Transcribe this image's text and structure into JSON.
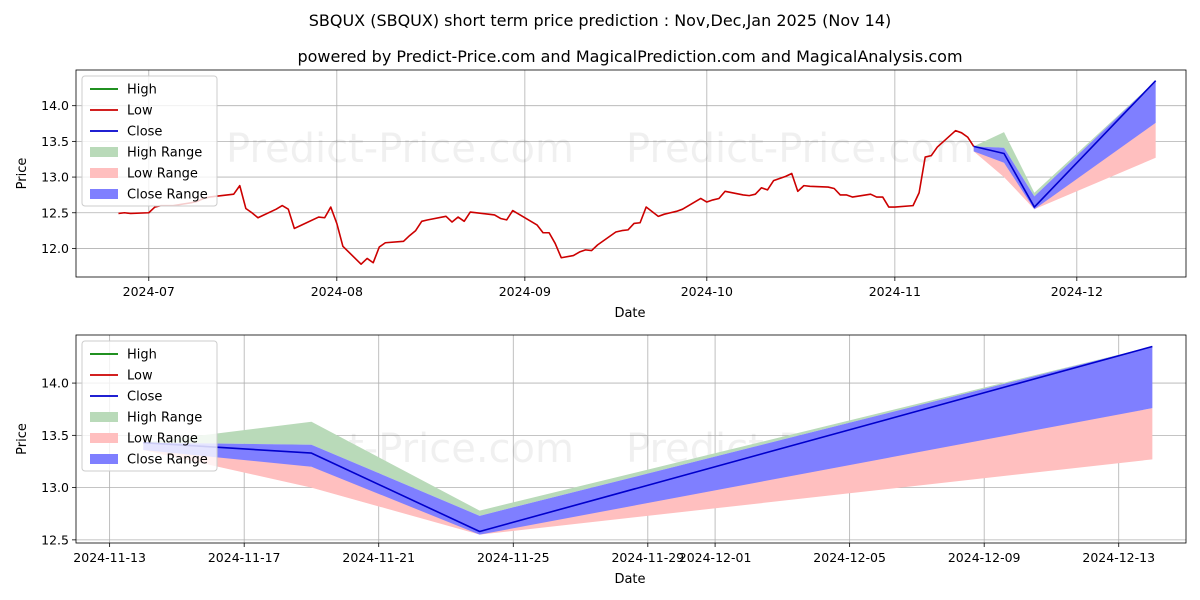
{
  "title": "SBQUX (SBQUX) short term price prediction : Nov,Dec,Jan 2025 (Nov 14)",
  "subtitle": "powered by Predict-Price.com and MagicalPrediction.com and MagicalAnalysis.com",
  "watermark": "Predict-Price.com",
  "colors": {
    "high": "#008000",
    "low": "#cc0000",
    "close": "#0000cc",
    "high_range": "#b9dab9",
    "low_range": "#ffbfbf",
    "close_range": "#7f7fff",
    "grid": "#b0b0b0"
  },
  "chart_data": [
    {
      "type": "line",
      "xlabel": "Date",
      "ylabel": "Price",
      "xlim": [
        "2024-06-19",
        "2024-12-19"
      ],
      "ylim": [
        11.6,
        14.5
      ],
      "xticks": [
        {
          "date": "2024-07-01",
          "label": "2024-07"
        },
        {
          "date": "2024-08-01",
          "label": "2024-08"
        },
        {
          "date": "2024-09-01",
          "label": "2024-09"
        },
        {
          "date": "2024-10-01",
          "label": "2024-10"
        },
        {
          "date": "2024-11-01",
          "label": "2024-11"
        },
        {
          "date": "2024-12-01",
          "label": "2024-12"
        }
      ],
      "yticks": [
        12.0,
        12.5,
        13.0,
        13.5,
        14.0
      ],
      "legend": [
        "High",
        "Low",
        "Close",
        "High Range",
        "Low Range",
        "Close Range"
      ],
      "legend_location": "upper-left",
      "history": [
        [
          "2024-06-26",
          12.49
        ],
        [
          "2024-06-27",
          12.5
        ],
        [
          "2024-06-28",
          12.49
        ],
        [
          "2024-07-01",
          12.5
        ],
        [
          "2024-07-02",
          12.58
        ],
        [
          "2024-07-03",
          12.6
        ],
        [
          "2024-07-05",
          12.6
        ],
        [
          "2024-07-08",
          12.64
        ],
        [
          "2024-07-09",
          12.66
        ],
        [
          "2024-07-10",
          12.7
        ],
        [
          "2024-07-11",
          12.72
        ],
        [
          "2024-07-12",
          12.73
        ],
        [
          "2024-07-15",
          12.76
        ],
        [
          "2024-07-16",
          12.88
        ],
        [
          "2024-07-17",
          12.56
        ],
        [
          "2024-07-18",
          12.5
        ],
        [
          "2024-07-19",
          12.43
        ],
        [
          "2024-07-22",
          12.55
        ],
        [
          "2024-07-23",
          12.6
        ],
        [
          "2024-07-24",
          12.55
        ],
        [
          "2024-07-25",
          12.28
        ],
        [
          "2024-07-26",
          12.32
        ],
        [
          "2024-07-29",
          12.44
        ],
        [
          "2024-07-30",
          12.43
        ],
        [
          "2024-07-31",
          12.58
        ],
        [
          "2024-08-01",
          12.35
        ],
        [
          "2024-08-02",
          12.03
        ],
        [
          "2024-08-05",
          11.78
        ],
        [
          "2024-08-06",
          11.86
        ],
        [
          "2024-08-07",
          11.8
        ],
        [
          "2024-08-08",
          12.02
        ],
        [
          "2024-08-09",
          12.08
        ],
        [
          "2024-08-12",
          12.1
        ],
        [
          "2024-08-13",
          12.18
        ],
        [
          "2024-08-14",
          12.25
        ],
        [
          "2024-08-15",
          12.38
        ],
        [
          "2024-08-16",
          12.4
        ],
        [
          "2024-08-19",
          12.45
        ],
        [
          "2024-08-20",
          12.37
        ],
        [
          "2024-08-21",
          12.44
        ],
        [
          "2024-08-22",
          12.38
        ],
        [
          "2024-08-23",
          12.51
        ],
        [
          "2024-08-26",
          12.48
        ],
        [
          "2024-08-27",
          12.47
        ],
        [
          "2024-08-28",
          12.42
        ],
        [
          "2024-08-29",
          12.4
        ],
        [
          "2024-08-30",
          12.53
        ],
        [
          "2024-09-03",
          12.33
        ],
        [
          "2024-09-04",
          12.22
        ],
        [
          "2024-09-05",
          12.22
        ],
        [
          "2024-09-06",
          12.07
        ],
        [
          "2024-09-07",
          11.87
        ],
        [
          "2024-09-09",
          11.9
        ],
        [
          "2024-09-10",
          11.95
        ],
        [
          "2024-09-11",
          11.98
        ],
        [
          "2024-09-12",
          11.97
        ],
        [
          "2024-09-13",
          12.05
        ],
        [
          "2024-09-16",
          12.23
        ],
        [
          "2024-09-17",
          12.25
        ],
        [
          "2024-09-18",
          12.26
        ],
        [
          "2024-09-19",
          12.35
        ],
        [
          "2024-09-20",
          12.36
        ],
        [
          "2024-09-21",
          12.58
        ],
        [
          "2024-09-23",
          12.45
        ],
        [
          "2024-09-24",
          12.48
        ],
        [
          "2024-09-25",
          12.5
        ],
        [
          "2024-09-26",
          12.52
        ],
        [
          "2024-09-27",
          12.55
        ],
        [
          "2024-09-30",
          12.7
        ],
        [
          "2024-10-01",
          12.65
        ],
        [
          "2024-10-02",
          12.68
        ],
        [
          "2024-10-03",
          12.7
        ],
        [
          "2024-10-04",
          12.8
        ],
        [
          "2024-10-07",
          12.75
        ],
        [
          "2024-10-08",
          12.74
        ],
        [
          "2024-10-09",
          12.76
        ],
        [
          "2024-10-10",
          12.85
        ],
        [
          "2024-10-11",
          12.82
        ],
        [
          "2024-10-12",
          12.95
        ],
        [
          "2024-10-14",
          13.01
        ],
        [
          "2024-10-15",
          13.05
        ],
        [
          "2024-10-16",
          12.8
        ],
        [
          "2024-10-17",
          12.88
        ],
        [
          "2024-10-18",
          12.87
        ],
        [
          "2024-10-21",
          12.86
        ],
        [
          "2024-10-22",
          12.84
        ],
        [
          "2024-10-23",
          12.75
        ],
        [
          "2024-10-24",
          12.75
        ],
        [
          "2024-10-25",
          12.72
        ],
        [
          "2024-10-28",
          12.76
        ],
        [
          "2024-10-29",
          12.72
        ],
        [
          "2024-10-30",
          12.72
        ],
        [
          "2024-10-31",
          12.58
        ],
        [
          "2024-11-01",
          12.58
        ],
        [
          "2024-11-04",
          12.6
        ],
        [
          "2024-11-05",
          12.78
        ],
        [
          "2024-11-06",
          13.28
        ],
        [
          "2024-11-07",
          13.3
        ],
        [
          "2024-11-08",
          13.42
        ],
        [
          "2024-11-11",
          13.65
        ],
        [
          "2024-11-12",
          13.62
        ],
        [
          "2024-11-13",
          13.56
        ],
        [
          "2024-11-14",
          13.43
        ]
      ]
    },
    {
      "type": "line",
      "xlabel": "Date",
      "ylabel": "Price",
      "xlim": [
        "2024-11-12",
        "2024-12-15"
      ],
      "ylim": [
        12.47,
        14.46
      ],
      "xticks": [
        {
          "date": "2024-11-13",
          "label": "2024-11-13"
        },
        {
          "date": "2024-11-17",
          "label": "2024-11-17"
        },
        {
          "date": "2024-11-21",
          "label": "2024-11-21"
        },
        {
          "date": "2024-11-25",
          "label": "2024-11-25"
        },
        {
          "date": "2024-11-29",
          "label": "2024-11-29"
        },
        {
          "date": "2024-12-01",
          "label": "2024-12-01"
        },
        {
          "date": "2024-12-05",
          "label": "2024-12-05"
        },
        {
          "date": "2024-12-09",
          "label": "2024-12-09"
        },
        {
          "date": "2024-12-13",
          "label": "2024-12-13"
        }
      ],
      "yticks": [
        12.5,
        13.0,
        13.5,
        14.0
      ],
      "legend": [
        "High",
        "Low",
        "Close",
        "High Range",
        "Low Range",
        "Close Range"
      ],
      "legend_location": "upper-left"
    }
  ],
  "forecast": {
    "dates": [
      "2024-11-14",
      "2024-11-19",
      "2024-11-24",
      "2024-12-14"
    ],
    "close": [
      13.43,
      13.33,
      12.58,
      14.35
    ],
    "high_range": [
      [
        13.43,
        13.43
      ],
      [
        13.41,
        13.63
      ],
      [
        12.73,
        12.78
      ],
      [
        14.35,
        14.35
      ]
    ],
    "low_range": [
      [
        13.36,
        13.43
      ],
      [
        13.0,
        13.2
      ],
      [
        12.55,
        12.62
      ],
      [
        13.27,
        13.76
      ]
    ],
    "close_range": [
      [
        13.36,
        13.43
      ],
      [
        13.2,
        13.41
      ],
      [
        12.55,
        12.73
      ],
      [
        13.76,
        14.35
      ]
    ]
  }
}
